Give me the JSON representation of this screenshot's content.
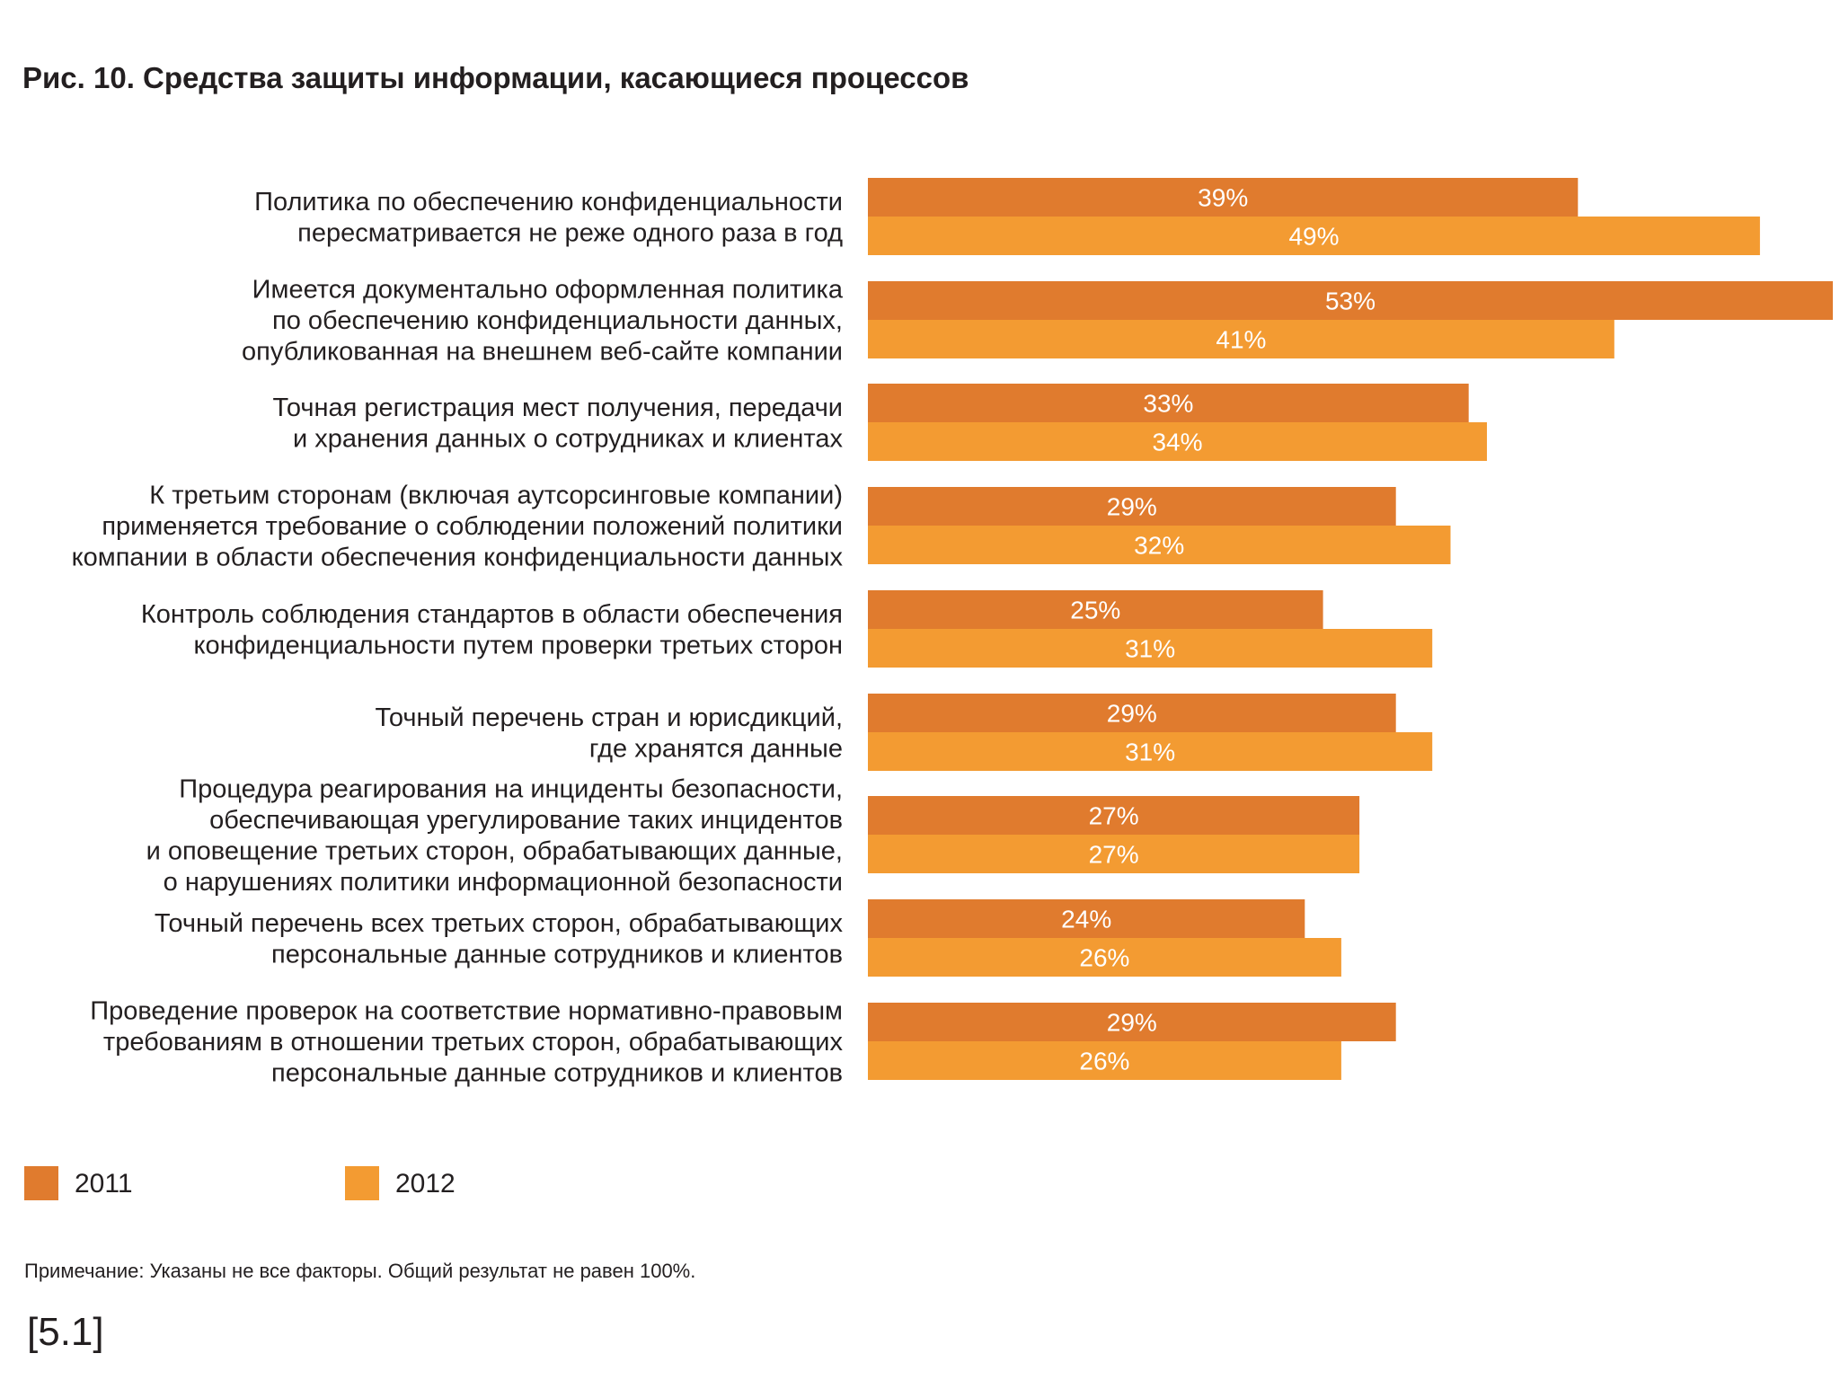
{
  "chart_data": {
    "type": "bar",
    "orientation": "horizontal",
    "title": "Рис. 10. Средства защиты информации, касающиеся процессов",
    "categories": [
      [
        "Политика по обеспечению конфиденциальности",
        "пересматривается не реже одного раза в год"
      ],
      [
        "Имеется документально оформленная политика",
        "по обеспечению конфиденциальности данных,",
        "опубликованная на внешнем веб-сайте компании"
      ],
      [
        "Точная регистрация мест получения, передачи",
        "и хранения данных о сотрудниках и клиентах"
      ],
      [
        "К третьим сторонам (включая аутсорсинговые компании)",
        "применяется требование  о соблюдении положений политики",
        "компании в области обеспечения конфиденциальности данных"
      ],
      [
        "Контроль соблюдения стандартов в области обеспечения",
        "конфиденциальности путем проверки третьих сторон"
      ],
      [
        "Точный перечень стран и юрисдикций,",
        "где хранятся данные"
      ],
      [
        "Процедура реагирования на инциденты безопасности,",
        "обеспечивающая урегулирование таких инцидентов",
        "и оповещение третьих сторон, обрабатывающих данные,",
        "о нарушениях политики информационной безопасности"
      ],
      [
        "Точный перечень всех третьих сторон, обрабатывающих",
        "персональные данные сотрудников и клиентов"
      ],
      [
        "Проведение проверок на соответствие нормативно-правовым",
        "требованиям в отношении  третьих сторон, обрабатывающих",
        "персональные данные сотрудников и клиентов"
      ]
    ],
    "series": [
      {
        "name": "2011",
        "color": "#e07b2e",
        "values": [
          39,
          53,
          33,
          29,
          25,
          29,
          27,
          24,
          29
        ]
      },
      {
        "name": "2012",
        "color": "#f39b32",
        "values": [
          49,
          41,
          34,
          32,
          31,
          31,
          27,
          26,
          26
        ]
      }
    ],
    "value_labels": [
      [
        "39%",
        "53%",
        "33%",
        "29%",
        "25%",
        "29%",
        "27%",
        "24%",
        "29%"
      ],
      [
        "49%",
        "41%",
        "34%",
        "32%",
        "31%",
        "31%",
        "27%",
        "26%",
        "26%"
      ]
    ],
    "xlim": [
      0,
      53
    ],
    "grid": false,
    "legend_position": "bottom-left"
  },
  "legend": {
    "item_2011": "2011",
    "item_2012": "2012"
  },
  "note": "Примечание: Указаны не все факторы. Общий результат не равен 100%.",
  "reference": "[5.1]"
}
